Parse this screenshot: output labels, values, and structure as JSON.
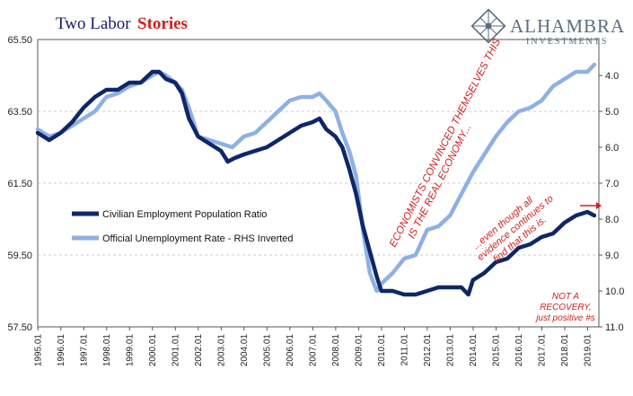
{
  "header": {
    "title_part1": "Two Labor",
    "title_part2": "Stories"
  },
  "brand": {
    "name": "ALHAMBRA",
    "sub": "INVESTMENTS",
    "logo_icon": "diamond-lattice-logo"
  },
  "annotations": {
    "convinced_line1": "ECONOMISTS CONVINCED THEMSELVES THIS",
    "convinced_line2": "IS THE REAL ECONOMY...",
    "evidence_line1": "...even though all",
    "evidence_line2": "evidence continues to",
    "evidence_line3": "find that this is.",
    "recovery_line1": "NOT A",
    "recovery_line2": "RECOVERY,",
    "recovery_line3": "just positive #s",
    "arrow_icon": "right-arrow-icon"
  },
  "colors": {
    "series1": "#0f2766",
    "series2": "#8fb0e3",
    "accent": "#d0201c",
    "grid": "#bfbfbf"
  },
  "chart_data": {
    "type": "line",
    "title": "Two Labor Stories",
    "x_labels": [
      "1995.01",
      "1996.01",
      "1997.01",
      "1998.01",
      "1999.01",
      "2000.01",
      "2001.01",
      "2002.01",
      "2003.01",
      "2004.01",
      "2005.01",
      "2006.01",
      "2007.01",
      "2008.01",
      "2009.01",
      "2010.01",
      "2011.01",
      "2012.01",
      "2013.01",
      "2014.01",
      "2015.01",
      "2016.01",
      "2017.01",
      "2018.01",
      "2019.01"
    ],
    "xlim": [
      1995.0,
      2019.5
    ],
    "y_left": {
      "ticks": [
        "57.50",
        "59.50",
        "61.50",
        "63.50",
        "65.50"
      ],
      "range": [
        57.5,
        65.5
      ]
    },
    "y_right": {
      "ticks": [
        "4.0",
        "5.0",
        "6.0",
        "7.0",
        "8.0",
        "9.0",
        "10.0",
        "11.0"
      ],
      "range": [
        3.0,
        11.0
      ],
      "inverted": true
    },
    "grid": "horizontal",
    "legend_position": "left-middle",
    "series": [
      {
        "name": "Civilian Employment Population Ratio",
        "axis": "left",
        "x": [
          1995.0,
          1995.5,
          1996.0,
          1996.5,
          1997.0,
          1997.5,
          1998.0,
          1998.5,
          1999.0,
          1999.5,
          2000.0,
          2000.3,
          2000.6,
          2001.0,
          2001.3,
          2001.6,
          2002.0,
          2002.5,
          2003.0,
          2003.3,
          2003.6,
          2004.0,
          2004.5,
          2005.0,
          2005.5,
          2006.0,
          2006.5,
          2007.0,
          2007.3,
          2007.6,
          2008.0,
          2008.3,
          2008.6,
          2008.9,
          2009.2,
          2009.5,
          2009.8,
          2010.0,
          2010.5,
          2011.0,
          2011.5,
          2012.0,
          2012.5,
          2013.0,
          2013.5,
          2013.8,
          2014.0,
          2014.5,
          2015.0,
          2015.5,
          2016.0,
          2016.5,
          2017.0,
          2017.5,
          2018.0,
          2018.5,
          2019.0,
          2019.3
        ],
        "values": [
          62.9,
          62.7,
          62.9,
          63.2,
          63.6,
          63.9,
          64.1,
          64.1,
          64.3,
          64.3,
          64.6,
          64.6,
          64.4,
          64.3,
          64.0,
          63.3,
          62.8,
          62.6,
          62.4,
          62.1,
          62.2,
          62.3,
          62.4,
          62.5,
          62.7,
          62.9,
          63.1,
          63.2,
          63.3,
          63.0,
          62.8,
          62.5,
          61.9,
          61.2,
          60.3,
          59.6,
          58.9,
          58.5,
          58.5,
          58.4,
          58.4,
          58.5,
          58.6,
          58.6,
          58.6,
          58.4,
          58.8,
          59.0,
          59.3,
          59.4,
          59.7,
          59.8,
          60.0,
          60.1,
          60.4,
          60.6,
          60.7,
          60.6
        ]
      },
      {
        "name": "Official Unemployment Rate - RHS Inverted",
        "axis": "right",
        "x": [
          1995.0,
          1995.5,
          1996.0,
          1996.5,
          1997.0,
          1997.5,
          1998.0,
          1998.5,
          1999.0,
          1999.5,
          2000.0,
          2000.3,
          2000.6,
          2001.0,
          2001.3,
          2001.6,
          2002.0,
          2002.5,
          2003.0,
          2003.5,
          2004.0,
          2004.5,
          2005.0,
          2005.5,
          2006.0,
          2006.5,
          2007.0,
          2007.3,
          2007.6,
          2008.0,
          2008.3,
          2008.6,
          2008.9,
          2009.2,
          2009.5,
          2009.8,
          2010.0,
          2010.5,
          2011.0,
          2011.5,
          2012.0,
          2012.5,
          2013.0,
          2013.5,
          2014.0,
          2014.5,
          2015.0,
          2015.5,
          2016.0,
          2016.5,
          2017.0,
          2017.5,
          2018.0,
          2018.5,
          2019.0,
          2019.3
        ],
        "values": [
          5.5,
          5.7,
          5.6,
          5.4,
          5.2,
          5.0,
          4.6,
          4.5,
          4.3,
          4.2,
          4.0,
          3.9,
          4.0,
          4.2,
          4.4,
          4.9,
          5.7,
          5.8,
          5.9,
          6.0,
          5.7,
          5.6,
          5.3,
          5.0,
          4.7,
          4.6,
          4.6,
          4.5,
          4.7,
          5.0,
          5.6,
          6.1,
          6.8,
          8.3,
          9.5,
          10.0,
          9.8,
          9.5,
          9.1,
          9.0,
          8.3,
          8.2,
          7.9,
          7.3,
          6.7,
          6.2,
          5.7,
          5.3,
          5.0,
          4.9,
          4.7,
          4.3,
          4.1,
          3.9,
          3.9,
          3.7
        ]
      }
    ]
  }
}
